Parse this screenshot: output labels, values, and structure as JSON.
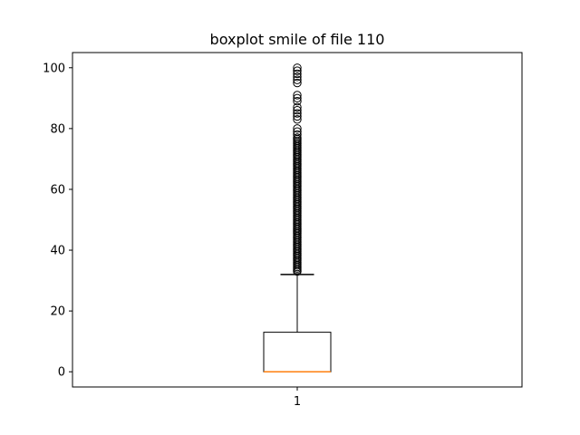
{
  "chart_data": {
    "type": "boxplot",
    "title": "boxplot smile of file 110",
    "xlabel": "",
    "ylabel": "",
    "categories": [
      "1"
    ],
    "ylim": [
      -5,
      105
    ],
    "yticks": [
      0,
      20,
      40,
      60,
      80,
      100
    ],
    "grid": false,
    "colors": {
      "box": "#000000",
      "median": "#ff7f0e",
      "outlier": "#000000"
    },
    "boxes": [
      {
        "label": "1",
        "whisker_low": 0,
        "q1": 0,
        "median": 0,
        "q3": 13,
        "whisker_high": 32,
        "outliers": [
          33,
          33.5,
          34,
          34.5,
          35,
          35.5,
          36,
          36.5,
          37,
          37.5,
          38,
          38.5,
          39,
          39.5,
          40,
          40.5,
          41,
          41.5,
          42,
          42.5,
          43,
          43.5,
          44,
          44.5,
          45,
          45.5,
          46,
          46.5,
          47,
          47.5,
          48,
          48.5,
          49,
          49.5,
          50,
          50.5,
          51,
          51.5,
          52,
          52.5,
          53,
          53.5,
          54,
          54.5,
          55,
          55.5,
          56,
          56.5,
          57,
          57.5,
          58,
          58.5,
          59,
          59.5,
          60,
          60.5,
          61,
          61.5,
          62,
          62.5,
          63,
          63.5,
          64,
          64.5,
          65,
          65.5,
          66,
          66.5,
          67,
          67.5,
          68,
          68.5,
          69,
          69.5,
          70,
          70.5,
          71,
          71.5,
          72,
          72.5,
          73,
          73.5,
          74,
          74.5,
          75,
          75.5,
          76,
          76.5,
          77,
          78,
          79,
          80,
          83,
          84,
          85,
          86,
          87,
          89,
          90,
          91,
          95,
          96,
          97,
          98,
          99,
          100
        ]
      }
    ]
  }
}
